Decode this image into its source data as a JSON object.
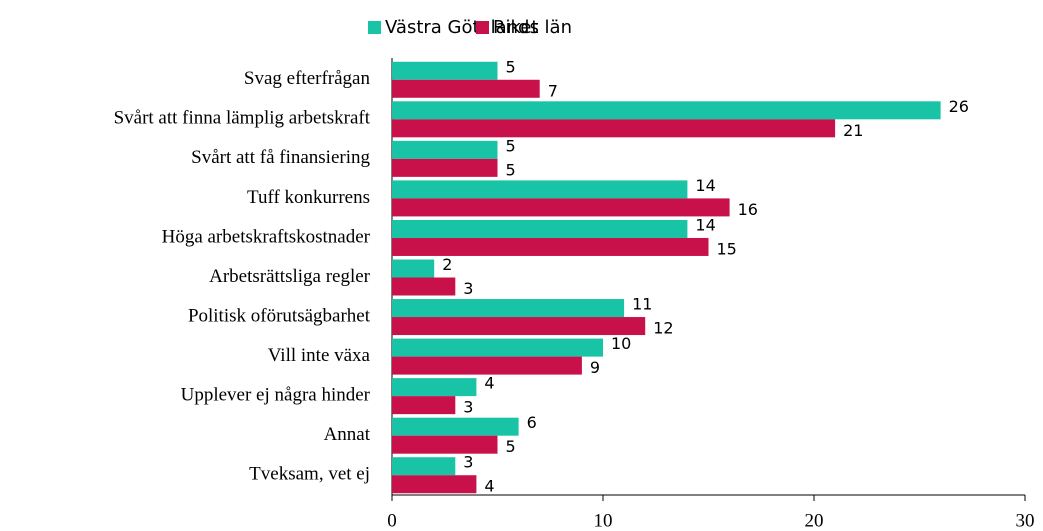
{
  "chart_data": {
    "type": "hbar",
    "categories": [
      "Svag efterfrågan",
      "Svårt att finna lämplig arbetskraft",
      "Svårt att få finansiering",
      "Tuff konkurrens",
      "Höga arbetskraftskostnader",
      "Arbetsrättsliga regler",
      "Politisk oförutsägbarhet",
      "Vill inte växa",
      "Upplever ej några hinder",
      "Annat",
      "Tveksam, vet ej"
    ],
    "series": [
      {
        "name": "Västra Götalands län",
        "color": "#19c3a5",
        "values": [
          5,
          26,
          5,
          14,
          14,
          2,
          11,
          10,
          4,
          6,
          3
        ]
      },
      {
        "name": "Riket",
        "color": "#c8104a",
        "values": [
          7,
          21,
          5,
          16,
          15,
          3,
          12,
          9,
          3,
          5,
          4
        ]
      }
    ],
    "xlim": [
      0,
      30
    ],
    "xticks": [
      0,
      10,
      20,
      30
    ],
    "legend": "top"
  }
}
